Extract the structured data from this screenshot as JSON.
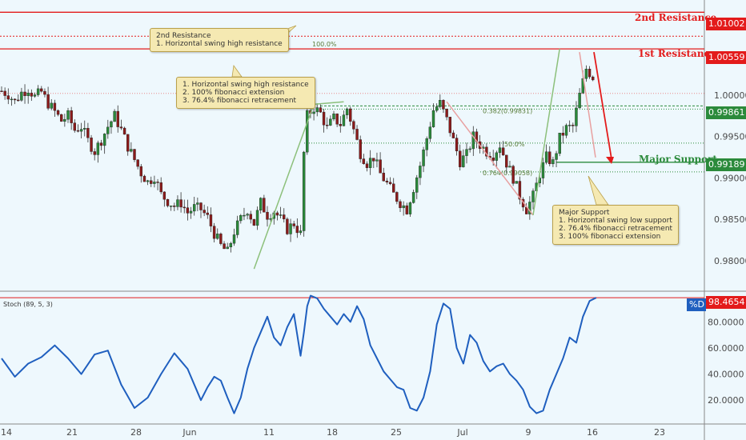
{
  "chart_data": [
    {
      "type": "candlestick",
      "ylim": [
        0.9765,
        1.0115
      ],
      "y_ticks": [
        "1.00000",
        "0.99500",
        "0.99000",
        "0.98500",
        "0.98000"
      ],
      "x_ticks": [
        "14",
        "21",
        "28",
        "Jun",
        "11",
        "18",
        "25",
        "Jul",
        "9",
        "16",
        "23"
      ],
      "levels": [
        {
          "name": "2nd Resistance",
          "price": "1.01002",
          "color": "#e31b1b"
        },
        {
          "name": "1st Resistance",
          "price": "1.00559",
          "color": "#e31b1b"
        },
        {
          "name": "",
          "price": "0.99861",
          "color": "#2b8a3b"
        },
        {
          "name": "Major Support",
          "price": "0.99189",
          "color": "#2b8a3b"
        }
      ],
      "fib_labels": [
        "100.0%",
        "0.382(0.99831)",
        "0.764(0.99058)",
        "50.0%"
      ],
      "annotations": [
        {
          "lines": [
            "2nd Resistance",
            "1. Horizontal swing high resistance"
          ]
        },
        {
          "lines": [
            "1. Horizontal swing high resistance",
            "2. 100% fibonacci extension",
            "3. 76.4% fibonacci retracement"
          ]
        },
        {
          "lines": [
            "Major Support",
            "1. Horizontal swing low support",
            "2. 76.4% fibonacci retracement",
            "3. 100% fibonacci extension"
          ]
        }
      ],
      "price_path": [
        [
          0,
          1.0005
        ],
        [
          2,
          1.0001
        ],
        [
          4,
          0.9992
        ],
        [
          6,
          1.0003
        ],
        [
          8,
          1.0008
        ],
        [
          10,
          0.9998
        ],
        [
          12,
          1.0004
        ],
        [
          14,
          0.999
        ],
        [
          16,
          0.998
        ],
        [
          18,
          0.9969
        ],
        [
          20,
          0.9975
        ],
        [
          22,
          0.9958
        ],
        [
          24,
          0.9962
        ],
        [
          26,
          0.9945
        ],
        [
          28,
          0.9932
        ],
        [
          30,
          0.9946
        ],
        [
          32,
          0.9962
        ],
        [
          34,
          0.9975
        ],
        [
          36,
          0.9958
        ],
        [
          38,
          0.9938
        ],
        [
          40,
          0.9922
        ],
        [
          42,
          0.9906
        ],
        [
          44,
          0.9895
        ],
        [
          46,
          0.9902
        ],
        [
          48,
          0.988
        ],
        [
          50,
          0.9872
        ],
        [
          52,
          0.9866
        ],
        [
          54,
          0.987
        ],
        [
          56,
          0.9858
        ],
        [
          58,
          0.9864
        ],
        [
          60,
          0.9862
        ],
        [
          62,
          0.9852
        ],
        [
          64,
          0.9833
        ],
        [
          66,
          0.9818
        ],
        [
          68,
          0.981
        ],
        [
          70,
          0.9835
        ],
        [
          72,
          0.985
        ],
        [
          74,
          0.9862
        ],
        [
          76,
          0.9845
        ],
        [
          78,
          0.987
        ],
        [
          80,
          0.9855
        ],
        [
          82,
          0.986
        ],
        [
          84,
          0.985
        ],
        [
          86,
          0.9838
        ],
        [
          88,
          0.9845
        ],
        [
          90,
          0.9832
        ],
        [
          91,
          0.993
        ],
        [
          92,
          0.9975
        ],
        [
          94,
          0.9985
        ],
        [
          96,
          0.9978
        ],
        [
          98,
          0.996
        ],
        [
          100,
          0.9972
        ],
        [
          102,
          0.9965
        ],
        [
          104,
          0.9984
        ],
        [
          106,
          0.9958
        ],
        [
          108,
          0.993
        ],
        [
          110,
          0.9918
        ],
        [
          112,
          0.9925
        ],
        [
          114,
          0.9905
        ],
        [
          116,
          0.9893
        ],
        [
          118,
          0.988
        ],
        [
          120,
          0.987
        ],
        [
          122,
          0.9862
        ],
        [
          124,
          0.9888
        ],
        [
          126,
          0.9915
        ],
        [
          128,
          0.9948
        ],
        [
          130,
          0.9982
        ],
        [
          132,
          0.999
        ],
        [
          134,
          0.997
        ],
        [
          136,
          0.9945
        ],
        [
          138,
          0.992
        ],
        [
          140,
          0.9928
        ],
        [
          142,
          0.995
        ],
        [
          144,
          0.994
        ],
        [
          146,
          0.9932
        ],
        [
          148,
          0.9928
        ],
        [
          150,
          0.994
        ],
        [
          152,
          0.9918
        ],
        [
          154,
          0.99
        ],
        [
          156,
          0.9878
        ],
        [
          158,
          0.9862
        ],
        [
          160,
          0.9878
        ],
        [
          162,
          0.9905
        ],
        [
          164,
          0.9925
        ],
        [
          166,
          0.9918
        ],
        [
          168,
          0.9948
        ],
        [
          170,
          0.996
        ],
        [
          172,
          0.9962
        ],
        [
          174,
          1.0
        ],
        [
          176,
          1.0032
        ],
        [
          178,
          1.0022
        ]
      ]
    },
    {
      "type": "line",
      "title": "Stoch (89, 5, 3)",
      "ylim": [
        3,
        101
      ],
      "y_ticks": [
        "80.0000",
        "60.0000",
        "40.0000",
        "20.0000"
      ],
      "series": [
        {
          "name": "%D",
          "last_value": "98.4654",
          "color": "#1f5fbf"
        }
      ],
      "values": [
        [
          0,
          52
        ],
        [
          4,
          38
        ],
        [
          8,
          48
        ],
        [
          12,
          53
        ],
        [
          16,
          62
        ],
        [
          20,
          52
        ],
        [
          24,
          40
        ],
        [
          28,
          55
        ],
        [
          32,
          58
        ],
        [
          36,
          32
        ],
        [
          40,
          14
        ],
        [
          44,
          22
        ],
        [
          48,
          40
        ],
        [
          50,
          48
        ],
        [
          52,
          56
        ],
        [
          54,
          50
        ],
        [
          56,
          44
        ],
        [
          58,
          32
        ],
        [
          60,
          20
        ],
        [
          62,
          30
        ],
        [
          64,
          38
        ],
        [
          66,
          35
        ],
        [
          68,
          22
        ],
        [
          70,
          10
        ],
        [
          72,
          22
        ],
        [
          74,
          44
        ],
        [
          76,
          60
        ],
        [
          78,
          72
        ],
        [
          80,
          84
        ],
        [
          82,
          68
        ],
        [
          84,
          62
        ],
        [
          86,
          76
        ],
        [
          88,
          86
        ],
        [
          90,
          54
        ],
        [
          91,
          72
        ],
        [
          92,
          92
        ],
        [
          93,
          100
        ],
        [
          95,
          98
        ],
        [
          97,
          90
        ],
        [
          99,
          84
        ],
        [
          101,
          78
        ],
        [
          103,
          86
        ],
        [
          105,
          80
        ],
        [
          107,
          92
        ],
        [
          109,
          82
        ],
        [
          111,
          62
        ],
        [
          113,
          52
        ],
        [
          115,
          42
        ],
        [
          117,
          36
        ],
        [
          119,
          30
        ],
        [
          121,
          28
        ],
        [
          123,
          14
        ],
        [
          125,
          12
        ],
        [
          127,
          22
        ],
        [
          129,
          42
        ],
        [
          131,
          78
        ],
        [
          133,
          94
        ],
        [
          135,
          90
        ],
        [
          137,
          60
        ],
        [
          139,
          48
        ],
        [
          141,
          70
        ],
        [
          143,
          64
        ],
        [
          145,
          50
        ],
        [
          147,
          42
        ],
        [
          149,
          46
        ],
        [
          151,
          48
        ],
        [
          153,
          40
        ],
        [
          155,
          35
        ],
        [
          157,
          28
        ],
        [
          159,
          15
        ],
        [
          161,
          10
        ],
        [
          163,
          12
        ],
        [
          165,
          28
        ],
        [
          167,
          40
        ],
        [
          169,
          52
        ],
        [
          171,
          68
        ],
        [
          173,
          64
        ],
        [
          175,
          84
        ],
        [
          177,
          96
        ],
        [
          179,
          98.47
        ]
      ]
    }
  ]
}
